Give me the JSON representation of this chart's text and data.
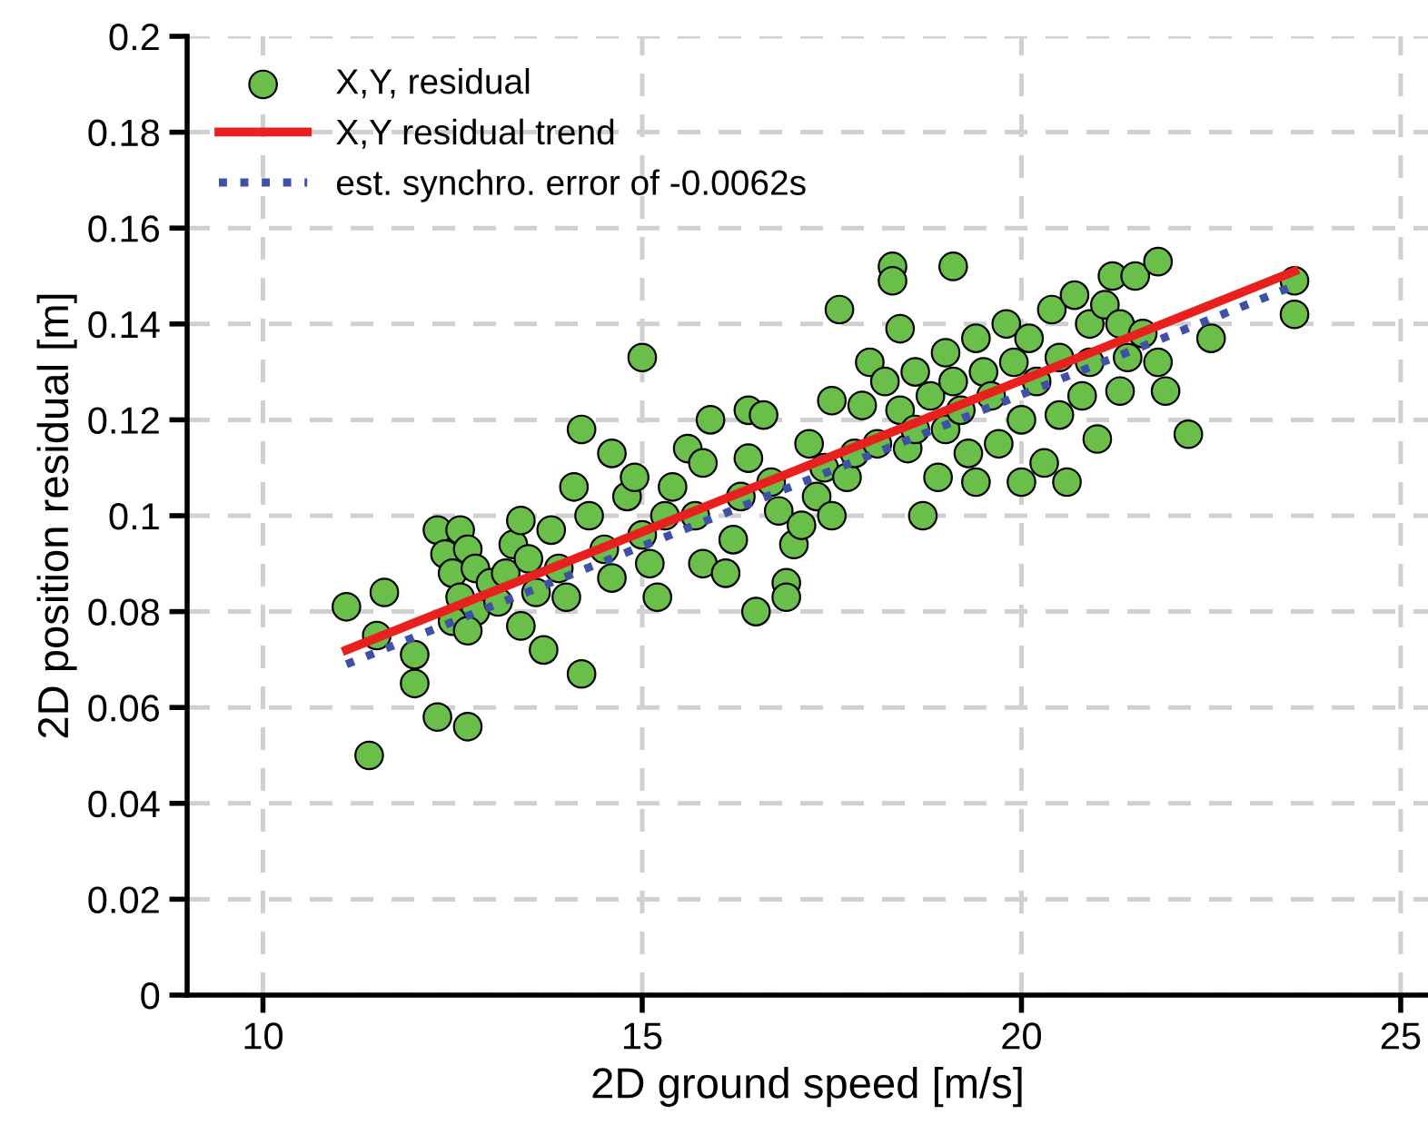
{
  "chart_data": {
    "type": "scatter",
    "xlabel": "2D ground speed [m/s]",
    "ylabel": "2D position residual [m]",
    "xlim": [
      9,
      25.36
    ],
    "ylim": [
      0,
      0.2
    ],
    "xticks": [
      10,
      15,
      20,
      25
    ],
    "yticks": [
      0,
      {
        "value": 0.02,
        "label": "0.02"
      },
      {
        "value": 0.04,
        "label": "0.04"
      },
      {
        "value": 0.06,
        "label": "0.06"
      },
      {
        "value": 0.08,
        "label": "0.08"
      },
      {
        "value": 0.1,
        "label": "0.1"
      },
      {
        "value": 0.12,
        "label": "0.12"
      },
      {
        "value": 0.14,
        "label": "0.14"
      },
      {
        "value": 0.16,
        "label": "0.16"
      },
      {
        "value": 0.18,
        "label": "0.18"
      },
      {
        "value": 0.2,
        "label": "0.2"
      }
    ],
    "grid": true,
    "legend": "top left",
    "series": [
      {
        "name": "X,Y, residual",
        "marker": "circle",
        "color": "#6abf4b",
        "x": [
          11.1,
          11.4,
          11.6,
          11.5,
          12.0,
          12.0,
          12.3,
          12.7,
          12.3,
          12.4,
          12.5,
          12.6,
          12.7,
          12.8,
          12.6,
          12.8,
          12.5,
          12.7,
          13.0,
          13.1,
          13.2,
          13.3,
          13.4,
          13.5,
          13.6,
          13.4,
          13.7,
          13.8,
          13.9,
          14.0,
          14.1,
          14.2,
          14.3,
          14.2,
          14.5,
          14.6,
          14.6,
          14.8,
          14.9,
          15.0,
          15.0,
          15.1,
          15.2,
          15.3,
          15.4,
          15.6,
          15.7,
          15.8,
          15.8,
          15.9,
          16.1,
          16.2,
          16.3,
          16.4,
          16.4,
          16.5,
          16.6,
          16.7,
          16.8,
          16.9,
          16.9,
          17.0,
          17.1,
          17.2,
          17.3,
          17.4,
          17.5,
          17.5,
          17.6,
          17.7,
          17.8,
          17.9,
          18.0,
          18.1,
          18.2,
          18.3,
          18.3,
          18.4,
          18.4,
          18.5,
          18.6,
          18.6,
          18.7,
          18.8,
          18.9,
          19.0,
          19.0,
          19.1,
          19.1,
          19.2,
          19.3,
          19.4,
          19.4,
          19.5,
          19.6,
          19.7,
          19.8,
          19.9,
          20.0,
          20.0,
          20.1,
          20.2,
          20.3,
          20.4,
          20.5,
          20.5,
          20.6,
          20.7,
          20.8,
          20.9,
          20.9,
          21.0,
          21.1,
          21.2,
          21.3,
          21.3,
          21.4,
          21.5,
          21.6,
          21.8,
          21.8,
          21.9,
          22.2,
          22.5,
          23.6,
          23.6
        ],
        "values": [
          0.081,
          0.05,
          0.084,
          0.075,
          0.071,
          0.065,
          0.058,
          0.056,
          0.097,
          0.092,
          0.088,
          0.097,
          0.093,
          0.089,
          0.083,
          0.08,
          0.078,
          0.076,
          0.086,
          0.082,
          0.088,
          0.094,
          0.099,
          0.091,
          0.084,
          0.077,
          0.072,
          0.097,
          0.089,
          0.083,
          0.106,
          0.118,
          0.1,
          0.067,
          0.093,
          0.087,
          0.113,
          0.104,
          0.108,
          0.133,
          0.096,
          0.09,
          0.083,
          0.1,
          0.106,
          0.114,
          0.1,
          0.111,
          0.09,
          0.12,
          0.088,
          0.095,
          0.104,
          0.112,
          0.122,
          0.08,
          0.121,
          0.107,
          0.101,
          0.086,
          0.083,
          0.094,
          0.098,
          0.115,
          0.104,
          0.11,
          0.1,
          0.124,
          0.143,
          0.108,
          0.113,
          0.123,
          0.132,
          0.115,
          0.128,
          0.152,
          0.149,
          0.139,
          0.122,
          0.114,
          0.13,
          0.118,
          0.1,
          0.125,
          0.108,
          0.134,
          0.118,
          0.152,
          0.128,
          0.122,
          0.113,
          0.137,
          0.107,
          0.13,
          0.125,
          0.115,
          0.14,
          0.132,
          0.12,
          0.107,
          0.137,
          0.128,
          0.111,
          0.143,
          0.133,
          0.121,
          0.107,
          0.146,
          0.125,
          0.14,
          0.132,
          0.116,
          0.144,
          0.15,
          0.14,
          0.126,
          0.133,
          0.15,
          0.138,
          0.153,
          0.132,
          0.126,
          0.117,
          0.137,
          0.149,
          0.142
        ]
      },
      {
        "name": "X,Y residual trend",
        "type": "line",
        "line_style": "solid",
        "color": "#e8211f",
        "x": [
          11.1,
          23.6
        ],
        "values": [
          0.072,
          0.151
        ]
      },
      {
        "name": "est. synchro. error of -0.0062s",
        "type": "line",
        "line_style": "dotted",
        "color": "#3f51a6",
        "x": [
          11.1,
          23.6
        ],
        "values": [
          0.069,
          0.148
        ]
      }
    ]
  }
}
